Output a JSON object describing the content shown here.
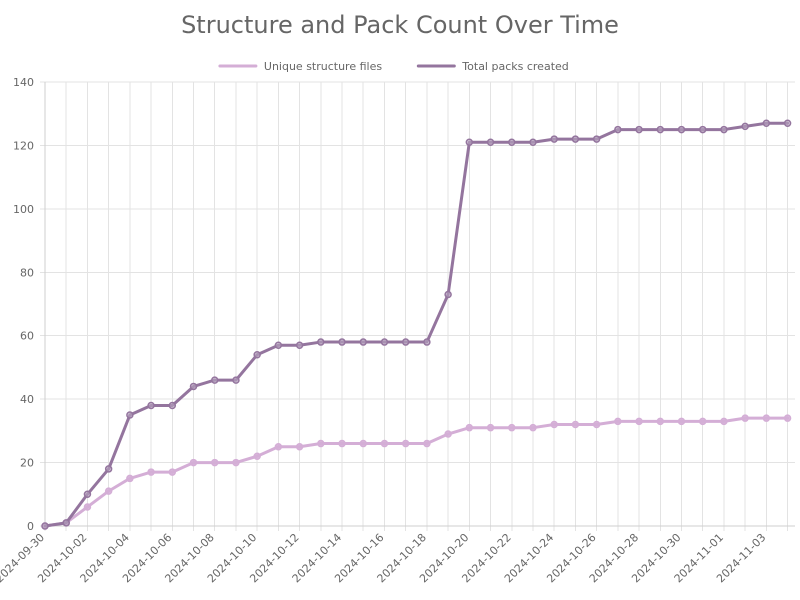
{
  "chart_data": {
    "type": "line",
    "title": "Structure and Pack Count Over Time",
    "xlabel": "",
    "ylabel": "",
    "ylim": [
      0,
      140
    ],
    "yticks": [
      0,
      20,
      40,
      60,
      80,
      100,
      120,
      140
    ],
    "grid": true,
    "legend_position": "top-center",
    "x": [
      "2024-09-30",
      "2024-10-01",
      "2024-10-02",
      "2024-10-03",
      "2024-10-04",
      "2024-10-05",
      "2024-10-06",
      "2024-10-07",
      "2024-10-08",
      "2024-10-09",
      "2024-10-10",
      "2024-10-11",
      "2024-10-12",
      "2024-10-13",
      "2024-10-14",
      "2024-10-15",
      "2024-10-16",
      "2024-10-17",
      "2024-10-18",
      "2024-10-19",
      "2024-10-20",
      "2024-10-21",
      "2024-10-22",
      "2024-10-23",
      "2024-10-24",
      "2024-10-25",
      "2024-10-26",
      "2024-10-27",
      "2024-10-28",
      "2024-10-29",
      "2024-10-30",
      "2024-10-31",
      "2024-11-01",
      "2024-11-02",
      "2024-11-03",
      "2024-11-04"
    ],
    "x_tick_labels": [
      "2024-09-30",
      "2024-10-02",
      "2024-10-04",
      "2024-10-06",
      "2024-10-08",
      "2024-10-10",
      "2024-10-12",
      "2024-10-14",
      "2024-10-16",
      "2024-10-18",
      "2024-10-20",
      "2024-10-22",
      "2024-10-24",
      "2024-10-26",
      "2024-10-28",
      "2024-10-30",
      "2024-11-01",
      "2024-11-03"
    ],
    "series": [
      {
        "name": "Unique structure files",
        "color": "#d4aed6",
        "values": [
          0,
          1,
          6,
          11,
          15,
          17,
          17,
          20,
          20,
          20,
          22,
          25,
          25,
          26,
          26,
          26,
          26,
          26,
          26,
          29,
          31,
          31,
          31,
          31,
          32,
          32,
          32,
          33,
          33,
          33,
          33,
          33,
          33,
          34,
          34,
          34
        ]
      },
      {
        "name": "Total packs created",
        "color": "#94759e",
        "values": [
          0,
          1,
          10,
          18,
          35,
          38,
          38,
          44,
          46,
          46,
          54,
          57,
          57,
          58,
          58,
          58,
          58,
          58,
          58,
          73,
          121,
          121,
          121,
          121,
          122,
          122,
          122,
          125,
          125,
          125,
          125,
          125,
          125,
          126,
          127,
          127
        ]
      }
    ]
  }
}
